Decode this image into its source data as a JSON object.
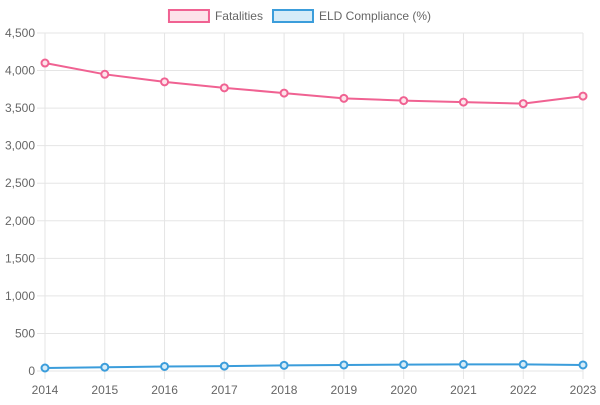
{
  "chart_data": {
    "type": "line",
    "x": [
      "2014",
      "2015",
      "2016",
      "2017",
      "2018",
      "2019",
      "2020",
      "2021",
      "2022",
      "2023"
    ],
    "ylim": [
      0,
      4500
    ],
    "yticks": [
      0,
      500,
      1000,
      1500,
      2000,
      2500,
      3000,
      3500,
      4000,
      4500
    ],
    "ytick_labels": [
      "0",
      "500",
      "1,000",
      "1,500",
      "2,000",
      "2,500",
      "3,000",
      "3,500",
      "4,000",
      "4,500"
    ],
    "grid": true,
    "legend_position": "top-center",
    "series": [
      {
        "name": "Fatalities",
        "color": "#f06292",
        "fill": "#fde3ea",
        "values": [
          4100,
          3950,
          3850,
          3770,
          3700,
          3630,
          3600,
          3580,
          3560,
          3660
        ]
      },
      {
        "name": "ELD Compliance (%)",
        "color": "#3b9ddb",
        "fill": "#d6ecf8",
        "values": [
          40,
          50,
          60,
          65,
          75,
          80,
          85,
          88,
          88,
          80
        ]
      }
    ]
  }
}
